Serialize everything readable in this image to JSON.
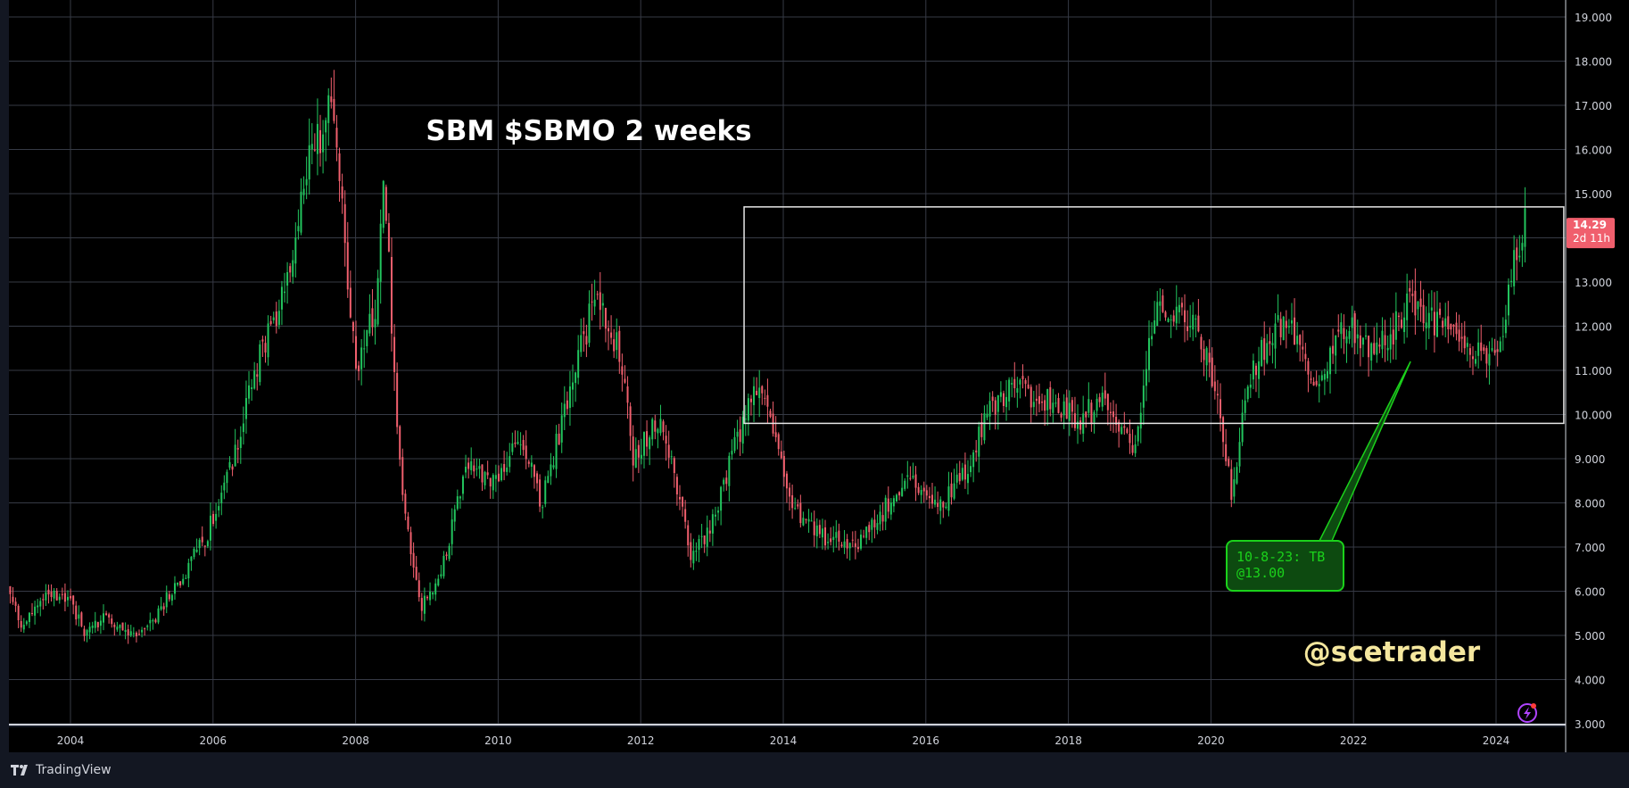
{
  "chart_data": {
    "type": "candlestick",
    "title": "SBM $SBMO 2 weeks",
    "watermark_handle": "@scetrader",
    "xlim": [
      2003.0,
      2025.0
    ],
    "ylim": [
      3.0,
      19.0
    ],
    "x_ticks": [
      "2004",
      "2006",
      "2008",
      "2010",
      "2012",
      "2014",
      "2016",
      "2018",
      "2020",
      "2022",
      "2024"
    ],
    "y_ticks": [
      "3.000",
      "4.000",
      "5.000",
      "6.000",
      "7.000",
      "8.000",
      "9.000",
      "10.000",
      "11.000",
      "12.000",
      "13.000",
      "14.000",
      "15.000",
      "16.000",
      "17.000",
      "18.000",
      "19.000"
    ],
    "grid": true,
    "colors": {
      "background": "#000000",
      "panel": "#131722",
      "grid": "#363a45",
      "up": "#22c55e",
      "down": "#f05f6d",
      "annotation_green": "#1bd11b",
      "annotation_fill": "#0d4a10",
      "watermark": "#f5e79e",
      "last_price_bg": "#f05f6d",
      "axis_text": "#d1d4dc"
    },
    "last_price": {
      "value": "14.29",
      "countdown": "2d 11h"
    },
    "range_box": {
      "x_start": 2013.45,
      "x_end": 2024.95,
      "y_low": 9.8,
      "y_high": 14.7
    },
    "annotation": {
      "lines": [
        "10-8-23: TB",
        "@13.00"
      ],
      "target_x": 2022.8,
      "target_y": 11.2
    },
    "anchors": [
      [
        2003.0,
        6.6
      ],
      [
        2003.3,
        5.2
      ],
      [
        2003.6,
        5.9
      ],
      [
        2003.9,
        6.0
      ],
      [
        2004.2,
        5.1
      ],
      [
        2004.5,
        5.5
      ],
      [
        2004.8,
        5.0
      ],
      [
        2005.1,
        5.2
      ],
      [
        2005.5,
        6.2
      ],
      [
        2005.9,
        7.2
      ],
      [
        2006.3,
        9.0
      ],
      [
        2006.6,
        11.0
      ],
      [
        2007.0,
        12.8
      ],
      [
        2007.4,
        16.0
      ],
      [
        2007.7,
        17.0
      ],
      [
        2008.0,
        11.0
      ],
      [
        2008.3,
        12.5
      ],
      [
        2008.4,
        15.5
      ],
      [
        2008.6,
        9.0
      ],
      [
        2008.9,
        5.6
      ],
      [
        2009.2,
        6.5
      ],
      [
        2009.6,
        9.0
      ],
      [
        2009.9,
        8.3
      ],
      [
        2010.3,
        9.5
      ],
      [
        2010.6,
        8.0
      ],
      [
        2011.0,
        10.5
      ],
      [
        2011.35,
        12.6
      ],
      [
        2011.7,
        11.5
      ],
      [
        2011.9,
        9.0
      ],
      [
        2012.3,
        10.0
      ],
      [
        2012.7,
        6.8
      ],
      [
        2013.0,
        7.5
      ],
      [
        2013.35,
        9.5
      ],
      [
        2013.7,
        10.8
      ],
      [
        2014.1,
        8.0
      ],
      [
        2014.6,
        7.2
      ],
      [
        2015.0,
        7.0
      ],
      [
        2015.4,
        7.8
      ],
      [
        2015.8,
        8.8
      ],
      [
        2016.1,
        7.8
      ],
      [
        2016.5,
        8.5
      ],
      [
        2016.9,
        10.2
      ],
      [
        2017.3,
        10.6
      ],
      [
        2017.7,
        10.3
      ],
      [
        2018.1,
        9.9
      ],
      [
        2018.5,
        10.2
      ],
      [
        2018.9,
        9.2
      ],
      [
        2019.2,
        12.2
      ],
      [
        2019.5,
        12.4
      ],
      [
        2019.9,
        11.6
      ],
      [
        2020.1,
        10.5
      ],
      [
        2020.3,
        8.0
      ],
      [
        2020.5,
        10.8
      ],
      [
        2020.9,
        12.0
      ],
      [
        2021.2,
        11.7
      ],
      [
        2021.5,
        10.6
      ],
      [
        2021.8,
        12.2
      ],
      [
        2022.1,
        11.6
      ],
      [
        2022.5,
        11.8
      ],
      [
        2022.85,
        12.6
      ],
      [
        2023.2,
        12.0
      ],
      [
        2023.5,
        11.8
      ],
      [
        2023.8,
        11.2
      ],
      [
        2024.05,
        11.2
      ],
      [
        2024.25,
        13.6
      ],
      [
        2024.42,
        14.29
      ]
    ]
  }
}
